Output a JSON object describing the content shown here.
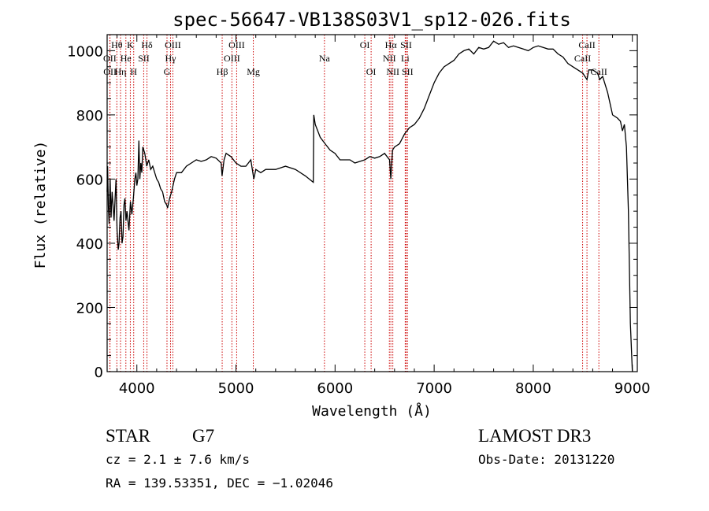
{
  "chart_data": {
    "type": "line",
    "title": "spec-56647-VB138S03V1_sp12-026.fits",
    "xlabel": "Wavelength (Å)",
    "ylabel": "Flux (relative)",
    "xlim": [
      3700,
      9050
    ],
    "ylim": [
      0,
      1050
    ],
    "xticks": [
      4000,
      5000,
      6000,
      7000,
      8000,
      9000
    ],
    "yticks": [
      0,
      200,
      400,
      600,
      800,
      1000
    ],
    "grid": false,
    "series": [
      {
        "name": "spectrum",
        "points": [
          [
            3700,
            560
          ],
          [
            3705,
            640
          ],
          [
            3712,
            520
          ],
          [
            3720,
            460
          ],
          [
            3730,
            600
          ],
          [
            3740,
            480
          ],
          [
            3750,
            560
          ],
          [
            3760,
            520
          ],
          [
            3770,
            470
          ],
          [
            3780,
            540
          ],
          [
            3790,
            600
          ],
          [
            3800,
            440
          ],
          [
            3812,
            380
          ],
          [
            3820,
            400
          ],
          [
            3830,
            480
          ],
          [
            3840,
            500
          ],
          [
            3850,
            400
          ],
          [
            3860,
            420
          ],
          [
            3870,
            520
          ],
          [
            3880,
            540
          ],
          [
            3890,
            470
          ],
          [
            3900,
            500
          ],
          [
            3910,
            470
          ],
          [
            3920,
            440
          ],
          [
            3935,
            530
          ],
          [
            3950,
            490
          ],
          [
            3965,
            540
          ],
          [
            3980,
            600
          ],
          [
            3990,
            620
          ],
          [
            4000,
            580
          ],
          [
            4010,
            600
          ],
          [
            4020,
            720
          ],
          [
            4030,
            600
          ],
          [
            4040,
            650
          ],
          [
            4050,
            620
          ],
          [
            4060,
            700
          ],
          [
            4080,
            680
          ],
          [
            4100,
            640
          ],
          [
            4120,
            660
          ],
          [
            4140,
            630
          ],
          [
            4160,
            640
          ],
          [
            4180,
            620
          ],
          [
            4200,
            600
          ],
          [
            4220,
            590
          ],
          [
            4240,
            570
          ],
          [
            4260,
            560
          ],
          [
            4280,
            530
          ],
          [
            4300,
            520
          ],
          [
            4310,
            510
          ],
          [
            4330,
            540
          ],
          [
            4350,
            560
          ],
          [
            4380,
            600
          ],
          [
            4400,
            620
          ],
          [
            4450,
            620
          ],
          [
            4500,
            640
          ],
          [
            4550,
            650
          ],
          [
            4600,
            660
          ],
          [
            4650,
            655
          ],
          [
            4700,
            660
          ],
          [
            4750,
            670
          ],
          [
            4800,
            665
          ],
          [
            4850,
            650
          ],
          [
            4860,
            610
          ],
          [
            4880,
            660
          ],
          [
            4900,
            680
          ],
          [
            4950,
            670
          ],
          [
            5000,
            650
          ],
          [
            5050,
            640
          ],
          [
            5100,
            640
          ],
          [
            5150,
            660
          ],
          [
            5180,
            600
          ],
          [
            5200,
            630
          ],
          [
            5250,
            620
          ],
          [
            5300,
            630
          ],
          [
            5400,
            630
          ],
          [
            5500,
            640
          ],
          [
            5600,
            630
          ],
          [
            5700,
            610
          ],
          [
            5780,
            590
          ],
          [
            5785,
            800
          ],
          [
            5800,
            770
          ],
          [
            5850,
            730
          ],
          [
            5900,
            710
          ],
          [
            5950,
            690
          ],
          [
            6000,
            680
          ],
          [
            6050,
            660
          ],
          [
            6100,
            660
          ],
          [
            6150,
            660
          ],
          [
            6200,
            650
          ],
          [
            6250,
            655
          ],
          [
            6300,
            660
          ],
          [
            6350,
            670
          ],
          [
            6400,
            665
          ],
          [
            6450,
            670
          ],
          [
            6500,
            680
          ],
          [
            6550,
            660
          ],
          [
            6563,
            600
          ],
          [
            6580,
            690
          ],
          [
            6600,
            700
          ],
          [
            6650,
            710
          ],
          [
            6700,
            740
          ],
          [
            6750,
            760
          ],
          [
            6800,
            770
          ],
          [
            6850,
            790
          ],
          [
            6900,
            820
          ],
          [
            6950,
            860
          ],
          [
            7000,
            900
          ],
          [
            7050,
            930
          ],
          [
            7100,
            950
          ],
          [
            7150,
            960
          ],
          [
            7200,
            970
          ],
          [
            7250,
            990
          ],
          [
            7300,
            1000
          ],
          [
            7350,
            1005
          ],
          [
            7400,
            990
          ],
          [
            7450,
            1010
          ],
          [
            7500,
            1005
          ],
          [
            7550,
            1010
          ],
          [
            7600,
            1030
          ],
          [
            7650,
            1020
          ],
          [
            7700,
            1025
          ],
          [
            7750,
            1010
          ],
          [
            7800,
            1015
          ],
          [
            7850,
            1010
          ],
          [
            7900,
            1005
          ],
          [
            7950,
            1000
          ],
          [
            8000,
            1010
          ],
          [
            8050,
            1015
          ],
          [
            8100,
            1010
          ],
          [
            8150,
            1005
          ],
          [
            8200,
            1005
          ],
          [
            8250,
            990
          ],
          [
            8300,
            980
          ],
          [
            8350,
            960
          ],
          [
            8400,
            950
          ],
          [
            8450,
            940
          ],
          [
            8500,
            930
          ],
          [
            8542,
            910
          ],
          [
            8560,
            940
          ],
          [
            8600,
            940
          ],
          [
            8650,
            930
          ],
          [
            8670,
            910
          ],
          [
            8700,
            920
          ],
          [
            8750,
            870
          ],
          [
            8800,
            800
          ],
          [
            8850,
            790
          ],
          [
            8880,
            780
          ],
          [
            8900,
            750
          ],
          [
            8920,
            770
          ],
          [
            8940,
            700
          ],
          [
            8960,
            500
          ],
          [
            8980,
            150
          ],
          [
            9000,
            0
          ]
        ]
      }
    ],
    "line_markers": [
      {
        "label": "Hθ",
        "wavelength": 3798,
        "row": 1
      },
      {
        "label": "K",
        "wavelength": 3934,
        "row": 1
      },
      {
        "label": "Hδ",
        "wavelength": 4102,
        "row": 1
      },
      {
        "label": "OIII",
        "wavelength": 4363,
        "row": 1
      },
      {
        "label": "OIII",
        "wavelength": 5007,
        "row": 1
      },
      {
        "label": "OI",
        "wavelength": 6300,
        "row": 1
      },
      {
        "label": "Hα",
        "wavelength": 6563,
        "row": 1
      },
      {
        "label": "SII",
        "wavelength": 6717,
        "row": 1
      },
      {
        "label": "CaII",
        "wavelength": 8542,
        "row": 1
      },
      {
        "label": "OII",
        "wavelength": 3727,
        "row": 2
      },
      {
        "label": "He",
        "wavelength": 3889,
        "row": 2
      },
      {
        "label": "SII",
        "wavelength": 4069,
        "row": 2
      },
      {
        "label": "Hγ",
        "wavelength": 4340,
        "row": 2
      },
      {
        "label": "OIII",
        "wavelength": 4959,
        "row": 2
      },
      {
        "label": "Na",
        "wavelength": 5893,
        "row": 2
      },
      {
        "label": "NII",
        "wavelength": 6548,
        "row": 2
      },
      {
        "label": "Li",
        "wavelength": 6708,
        "row": 2
      },
      {
        "label": "CaII",
        "wavelength": 8498,
        "row": 2
      },
      {
        "label": "OII",
        "wavelength": 3729,
        "row": 3
      },
      {
        "label": "Hη",
        "wavelength": 3835,
        "row": 3
      },
      {
        "label": "H",
        "wavelength": 3968,
        "row": 3
      },
      {
        "label": "G",
        "wavelength": 4304,
        "row": 3
      },
      {
        "label": "Hβ",
        "wavelength": 4861,
        "row": 3
      },
      {
        "label": "Mg",
        "wavelength": 5175,
        "row": 3
      },
      {
        "label": "OI",
        "wavelength": 6364,
        "row": 3
      },
      {
        "label": "NII",
        "wavelength": 6583,
        "row": 3
      },
      {
        "label": "SII",
        "wavelength": 6731,
        "row": 3
      },
      {
        "label": "CaII",
        "wavelength": 8662,
        "row": 3
      }
    ]
  },
  "info": {
    "class_label": "STAR",
    "subclass": "G7",
    "survey": "LAMOST DR3",
    "cz_text": "cz = 2.1 ± 7.6 km/s",
    "obs_date": "Obs-Date: 20131220",
    "coords": "RA = 139.53351, DEC =  −1.02046"
  },
  "colors": {
    "spectrum": "#000000",
    "marker": "#cc0000",
    "axis": "#000000"
  }
}
